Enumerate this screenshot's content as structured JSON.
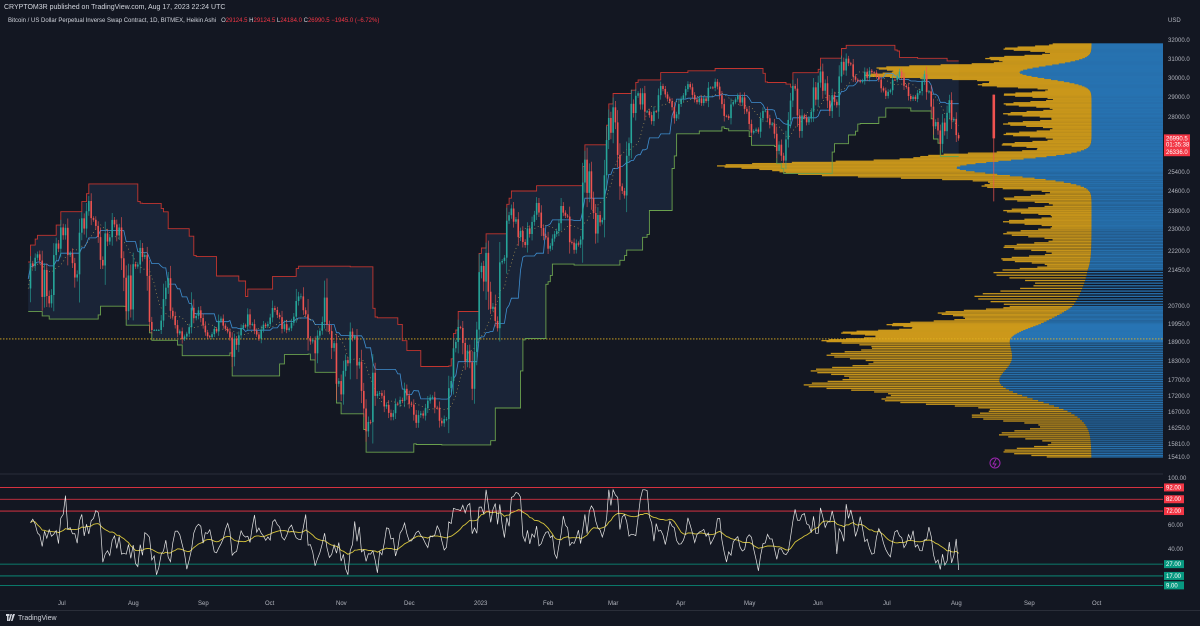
{
  "header": {
    "publisher_line": "CRYPTOM3R published on TradingView.com, Aug 17, 2023 22:24 UTC"
  },
  "symbol": {
    "name": "Bitcoin / US Dollar Perpetual Inverse Swap Contract, 1D, BITMEX, Heikin Ashi",
    "o_label": "O",
    "o_value": "29124.5",
    "h_label": "H",
    "h_value": "29124.5",
    "l_label": "L",
    "l_value": "24184.0",
    "c_label": "C",
    "c_value": "26990.5",
    "change": "−1945.0 (−6.72%)"
  },
  "footer": {
    "brand": "TradingView"
  },
  "colors": {
    "background": "#131722",
    "up_candle": "#26a69a",
    "down_candle": "#ef5350",
    "channel_fill": "#1e2a3f",
    "upper_band": "#c2352f",
    "lower_band": "#6aa04d",
    "mid_line": "#3f8fd1",
    "volume_profile_up": "#d9a21b",
    "volume_profile_value_area": "#2a7fc4",
    "poc_line": "#e0b020",
    "rsi_line": "#e6e6e6",
    "rsi_ma_line": "#d6c43c"
  },
  "chart_data": [
    {
      "type": "candlestick",
      "title": "",
      "currency_label": "USD",
      "x_tick_labels": [
        "Jul",
        "Aug",
        "Sep",
        "Oct",
        "Nov",
        "Dec",
        "2023",
        "Feb",
        "Mar",
        "Apr",
        "May",
        "Jun",
        "Jul",
        "Aug",
        "Sep",
        "Oct"
      ],
      "y_tick_labels": [
        "32000.0",
        "31000.0",
        "30000.0",
        "29000.0",
        "28000.0",
        "25400.0",
        "24600.0",
        "23800.0",
        "23000.0",
        "22200.0",
        "21450.0",
        "20700.0",
        "19950.0",
        "18900.0",
        "18300.0",
        "17700.0",
        "17200.0",
        "16700.0",
        "16250.0",
        "15810.0",
        "15410.0"
      ],
      "price_tags": [
        {
          "label": "26990.5",
          "color": "#f23645"
        },
        {
          "label": "01:35:38",
          "color": "#f23645"
        },
        {
          "label": "26336.0",
          "color": "#f23645"
        }
      ],
      "poc_price": 19080,
      "ohlc_monthly": [
        {
          "month": "Jul 2022",
          "low": 18900,
          "high": 24200,
          "close": 23300
        },
        {
          "month": "Aug 2022",
          "low": 19600,
          "high": 25200,
          "close": 20050
        },
        {
          "month": "Sep 2022",
          "low": 18200,
          "high": 22700,
          "close": 19400
        },
        {
          "month": "Oct 2022",
          "low": 18200,
          "high": 20900,
          "close": 20500
        },
        {
          "month": "Nov 2022",
          "low": 15500,
          "high": 21400,
          "close": 17150
        },
        {
          "month": "Dec 2022",
          "low": 16300,
          "high": 18400,
          "close": 16550
        },
        {
          "month": "Jan 2023",
          "low": 16500,
          "high": 23900,
          "close": 23100
        },
        {
          "month": "Feb 2023",
          "low": 21400,
          "high": 25200,
          "close": 23150
        },
        {
          "month": "Mar 2023",
          "low": 19600,
          "high": 29200,
          "close": 28500
        },
        {
          "month": "Apr 2023",
          "low": 27000,
          "high": 30600,
          "close": 29250
        },
        {
          "month": "May 2023",
          "low": 25800,
          "high": 29800,
          "close": 27200
        },
        {
          "month": "Jun 2023",
          "low": 24800,
          "high": 31400,
          "close": 30450
        },
        {
          "month": "Jul 2023",
          "low": 28900,
          "high": 31800,
          "close": 29200
        },
        {
          "month": "Aug 2023",
          "low": 24184,
          "high": 30200,
          "close": 26990.5
        }
      ]
    },
    {
      "type": "line",
      "title": "",
      "y_tick_labels": [
        "100.00",
        "60.00",
        "40.00",
        "17.00"
      ],
      "level_tags": [
        {
          "label": "92.00",
          "color": "#f23645"
        },
        {
          "label": "82.00",
          "color": "#f23645"
        },
        {
          "label": "72.00",
          "color": "#f23645"
        },
        {
          "label": "27.00",
          "color": "#089981"
        },
        {
          "label": "17.00",
          "color": "#089981"
        },
        {
          "label": "9.00",
          "color": "#089981"
        }
      ],
      "ylim": [
        0,
        100
      ]
    }
  ]
}
